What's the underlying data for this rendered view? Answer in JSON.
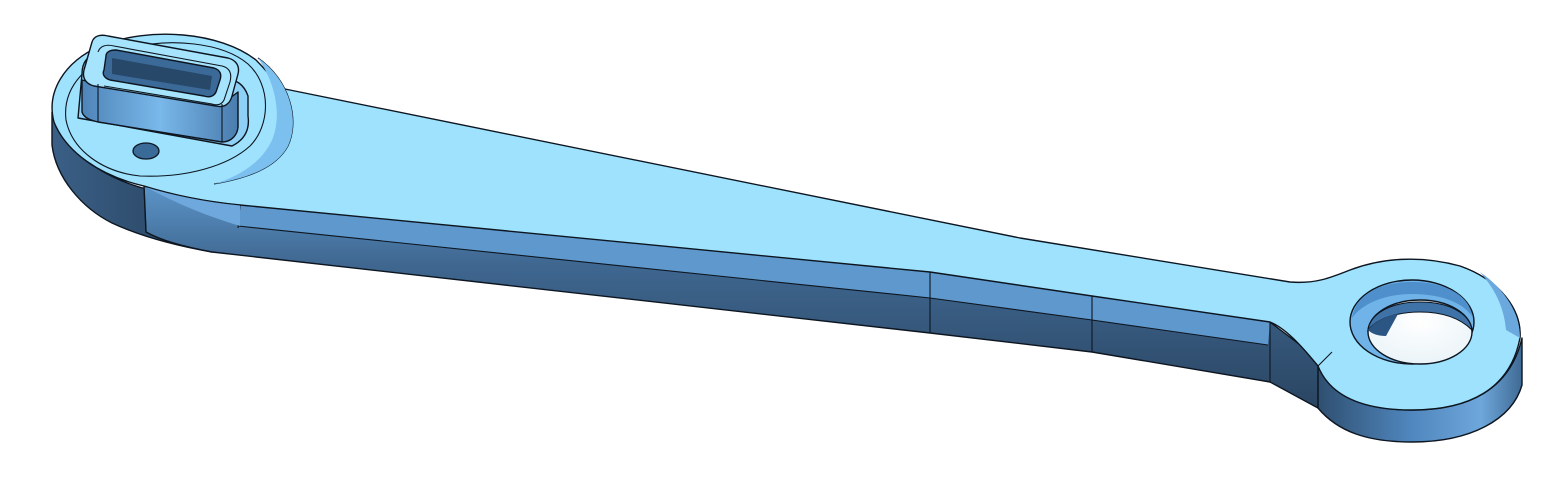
{
  "model": {
    "part": "lever-arm",
    "background_color": "#ffffff",
    "colors": {
      "top_face": "#9fe2fd",
      "bevel_light": "#73b4e6",
      "side_mid": "#5b94c8",
      "side_dark": "#385878",
      "side_darkest": "#233a52",
      "edge_line": "#0d1620"
    }
  }
}
